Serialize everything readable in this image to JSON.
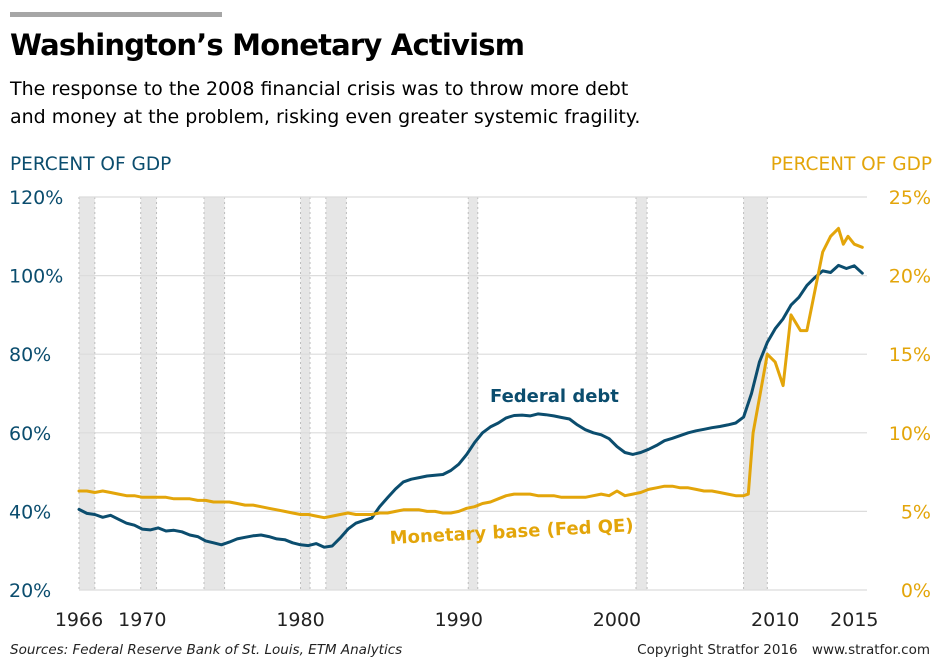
{
  "header": {
    "title": "Washington’s Monetary Activism",
    "subtitle_line1": "The response to the 2008 financial crisis was to throw more debt",
    "subtitle_line2": "and money at the problem, risking even greater systemic fragility."
  },
  "footer": {
    "sources": "Sources: Federal Reserve Bank of St. Louis, ETM Analytics",
    "copyright": "Copyright Stratfor 2016",
    "website": "www.stratfor.com"
  },
  "colors": {
    "federal_debt": "#0b4d6e",
    "monetary_base": "#e3a50a",
    "recession_band": "#e6e6e6",
    "grid": "#dcdcdc"
  },
  "chart_data": {
    "type": "line",
    "title": "Washington’s Monetary Activism",
    "xlabel": "",
    "x_ticks": [
      1966,
      1970,
      1980,
      1990,
      2000,
      2010,
      2015
    ],
    "x_range": [
      1966,
      2015.8
    ],
    "grid": "horizontal",
    "y_left": {
      "label": "PERCENT OF GDP",
      "range": [
        20,
        120
      ],
      "ticks": [
        20,
        40,
        60,
        80,
        100,
        120
      ],
      "tick_labels": [
        "20%",
        "40%",
        "60%",
        "80%",
        "100%",
        "120%"
      ]
    },
    "y_right": {
      "label": "PERCENT OF GDP",
      "range": [
        0,
        25
      ],
      "ticks": [
        0,
        5,
        10,
        15,
        20,
        25
      ],
      "tick_labels": [
        "0%",
        "5%",
        "10%",
        "15%",
        "20%",
        "25%"
      ]
    },
    "recessions": [
      [
        1966,
        1967
      ],
      [
        1969.9,
        1970.9
      ],
      [
        1973.9,
        1975.2
      ],
      [
        1980,
        1980.6
      ],
      [
        1981.6,
        1982.9
      ],
      [
        1990.6,
        1991.2
      ],
      [
        2001.2,
        2001.9
      ],
      [
        2008,
        2009.5
      ]
    ],
    "series": [
      {
        "name": "Federal debt",
        "axis": "left",
        "label_position": "above-center",
        "x": [
          1966,
          1966.5,
          1967,
          1967.5,
          1968,
          1968.5,
          1969,
          1969.5,
          1970,
          1970.5,
          1971,
          1971.5,
          1972,
          1972.5,
          1973,
          1973.5,
          1974,
          1974.5,
          1975,
          1975.5,
          1976,
          1976.5,
          1977,
          1977.5,
          1978,
          1978.5,
          1979,
          1979.5,
          1980,
          1980.5,
          1981,
          1981.5,
          1982,
          1982.5,
          1983,
          1983.5,
          1984,
          1984.5,
          1985,
          1985.5,
          1986,
          1986.5,
          1987,
          1987.5,
          1988,
          1988.5,
          1989,
          1989.5,
          1990,
          1990.5,
          1991,
          1991.5,
          1992,
          1992.5,
          1993,
          1993.5,
          1994,
          1994.5,
          1995,
          1995.5,
          1996,
          1996.5,
          1997,
          1997.5,
          1998,
          1998.5,
          1999,
          1999.5,
          2000,
          2000.5,
          2001,
          2001.5,
          2002,
          2002.5,
          2003,
          2003.5,
          2004,
          2004.5,
          2005,
          2005.5,
          2006,
          2006.5,
          2007,
          2007.5,
          2008,
          2008.5,
          2009,
          2009.5,
          2010,
          2010.5,
          2011,
          2011.5,
          2012,
          2012.5,
          2013,
          2013.5,
          2014,
          2014.5,
          2015,
          2015.5
        ],
        "values": [
          40.5,
          39.5,
          39.2,
          38.5,
          39.0,
          38.0,
          37.0,
          36.5,
          35.5,
          35.3,
          35.8,
          35.0,
          35.2,
          34.8,
          34.0,
          33.6,
          32.5,
          32.0,
          31.5,
          32.2,
          33.0,
          33.4,
          33.8,
          34.0,
          33.6,
          33.0,
          32.8,
          32.0,
          31.5,
          31.3,
          31.8,
          30.9,
          31.2,
          33.2,
          35.5,
          37.0,
          37.7,
          38.3,
          41.2,
          43.5,
          45.7,
          47.5,
          48.2,
          48.6,
          49.0,
          49.2,
          49.4,
          50.4,
          52.0,
          54.5,
          57.5,
          60.0,
          61.5,
          62.5,
          63.8,
          64.4,
          64.5,
          64.3,
          64.8,
          64.6,
          64.3,
          63.9,
          63.5,
          62.0,
          60.8,
          60.0,
          59.5,
          58.5,
          56.5,
          55.0,
          54.5,
          55.0,
          55.8,
          56.8,
          58.0,
          58.6,
          59.3,
          60.0,
          60.5,
          60.9,
          61.3,
          61.6,
          62.0,
          62.5,
          64.0,
          70.0,
          78.0,
          83.0,
          86.5,
          89.0,
          92.5,
          94.5,
          97.5,
          99.5,
          101.2,
          100.8,
          102.6,
          101.8,
          102.5,
          100.6
        ]
      },
      {
        "name": "Monetary base (Fed QE)",
        "axis": "right",
        "label_position": "below-center",
        "x": [
          1966,
          1966.5,
          1967,
          1967.5,
          1968,
          1968.5,
          1969,
          1969.5,
          1970,
          1970.5,
          1971,
          1971.5,
          1972,
          1972.5,
          1973,
          1973.5,
          1974,
          1974.5,
          1975,
          1975.5,
          1976,
          1976.5,
          1977,
          1977.5,
          1978,
          1978.5,
          1979,
          1979.5,
          1980,
          1980.5,
          1981,
          1981.5,
          1982,
          1982.5,
          1983,
          1983.5,
          1984,
          1984.5,
          1985,
          1985.5,
          1986,
          1986.5,
          1987,
          1987.5,
          1988,
          1988.5,
          1989,
          1989.5,
          1990,
          1990.5,
          1991,
          1991.5,
          1992,
          1992.5,
          1993,
          1993.5,
          1994,
          1994.5,
          1995,
          1995.5,
          1996,
          1996.5,
          1997,
          1997.5,
          1998,
          1998.5,
          1999,
          1999.5,
          2000,
          2000.5,
          2001,
          2001.5,
          2002,
          2002.5,
          2003,
          2003.5,
          2004,
          2004.5,
          2005,
          2005.5,
          2006,
          2006.5,
          2007,
          2007.5,
          2008,
          2008.3,
          2008.6,
          2009,
          2009.5,
          2010,
          2010.5,
          2011,
          2011.3,
          2011.6,
          2012,
          2012.5,
          2013,
          2013.5,
          2014,
          2014.3,
          2014.6,
          2015,
          2015.5
        ],
        "values": [
          6.3,
          6.3,
          6.2,
          6.3,
          6.2,
          6.1,
          6.0,
          6.0,
          5.9,
          5.9,
          5.9,
          5.9,
          5.8,
          5.8,
          5.8,
          5.7,
          5.7,
          5.6,
          5.6,
          5.6,
          5.5,
          5.4,
          5.4,
          5.3,
          5.2,
          5.1,
          5.0,
          4.9,
          4.8,
          4.8,
          4.7,
          4.6,
          4.7,
          4.8,
          4.9,
          4.8,
          4.8,
          4.8,
          4.9,
          4.9,
          5.0,
          5.1,
          5.1,
          5.1,
          5.0,
          5.0,
          4.9,
          4.9,
          5.0,
          5.2,
          5.3,
          5.5,
          5.6,
          5.8,
          6.0,
          6.1,
          6.1,
          6.1,
          6.0,
          6.0,
          6.0,
          5.9,
          5.9,
          5.9,
          5.9,
          6.0,
          6.1,
          6.0,
          6.3,
          6.0,
          6.1,
          6.2,
          6.4,
          6.5,
          6.6,
          6.6,
          6.5,
          6.5,
          6.4,
          6.3,
          6.3,
          6.2,
          6.1,
          6.0,
          6.0,
          6.1,
          10.0,
          12.2,
          15.0,
          14.5,
          13.0,
          17.5,
          17.0,
          16.5,
          16.5,
          19.0,
          21.5,
          22.5,
          23.0,
          22.0,
          22.5,
          22.0,
          21.8
        ]
      }
    ]
  }
}
